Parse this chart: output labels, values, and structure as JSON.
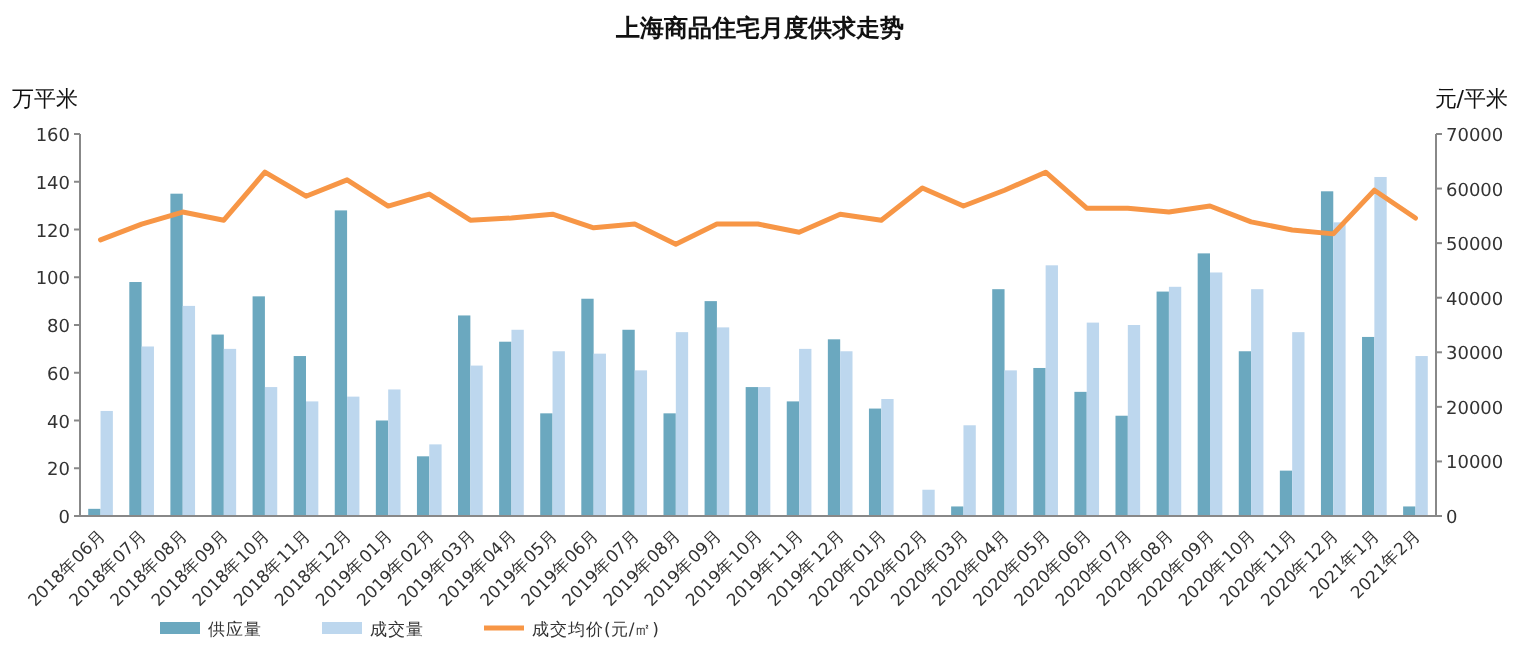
{
  "chart_data": {
    "type": "bar",
    "title": "上海商品住宅月度供求走势",
    "ylabel": "万平米",
    "y2label": "元/平米",
    "categories": [
      "2018年06月",
      "2018年07月",
      "2018年08月",
      "2018年09月",
      "2018年10月",
      "2018年11月",
      "2018年12月",
      "2019年01月",
      "2019年02月",
      "2019年03月",
      "2019年04月",
      "2019年05月",
      "2019年06月",
      "2019年07月",
      "2019年08月",
      "2019年09月",
      "2019年10月",
      "2019年11月",
      "2019年12月",
      "2020年01月",
      "2020年02月",
      "2020年03月",
      "2020年04月",
      "2020年05月",
      "2020年06月",
      "2020年07月",
      "2020年08月",
      "2020年09月",
      "2020年10月",
      "2020年11月",
      "2020年12月",
      "2021年1月",
      "2021年2月"
    ],
    "series": [
      {
        "name": "供应量",
        "color": "#6ba8bf",
        "values": [
          3,
          98,
          135,
          76,
          92,
          67,
          128,
          40,
          25,
          84,
          73,
          43,
          91,
          78,
          43,
          90,
          54,
          48,
          74,
          45,
          0,
          4,
          95,
          62,
          52,
          42,
          94,
          110,
          69,
          19,
          136,
          75,
          4
        ]
      },
      {
        "name": "成交量",
        "color": "#bdd7ee",
        "values": [
          44,
          71,
          88,
          70,
          54,
          48,
          50,
          53,
          30,
          63,
          78,
          69,
          68,
          61,
          77,
          79,
          54,
          70,
          69,
          49,
          11,
          38,
          61,
          105,
          81,
          80,
          96,
          102,
          95,
          77,
          123,
          142,
          67
        ]
      },
      {
        "name": "成交均价(元/㎡)",
        "type": "line",
        "axis": "y2",
        "color": "#f79646",
        "values": [
          50600,
          53500,
          55700,
          54200,
          63000,
          58600,
          61600,
          56800,
          59000,
          54200,
          54600,
          55300,
          52800,
          53500,
          49800,
          53500,
          53500,
          52000,
          55300,
          54200,
          60100,
          56800,
          59700,
          63000,
          56400,
          56400,
          55700,
          56800,
          53900,
          52400,
          51700,
          59700,
          54600
        ]
      }
    ],
    "ylim": [
      0,
      160
    ],
    "yticks": [
      0,
      20,
      40,
      60,
      80,
      100,
      120,
      140,
      160
    ],
    "y2lim": [
      0,
      70000
    ],
    "y2ticks": [
      0,
      10000,
      20000,
      30000,
      40000,
      50000,
      60000,
      70000
    ],
    "grid": false,
    "legend": "bottom"
  }
}
